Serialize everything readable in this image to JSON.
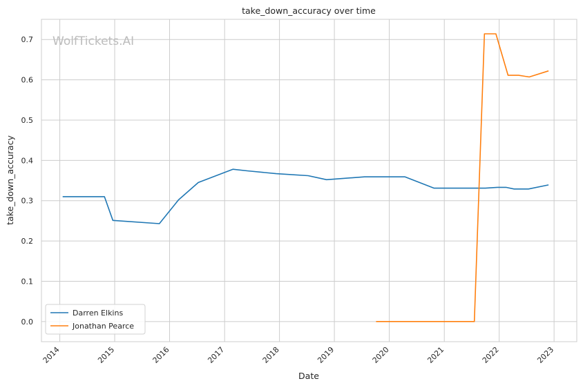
{
  "watermark": "WolfTickets.AI",
  "chart_data": {
    "type": "line",
    "title": "take_down_accuracy over time",
    "xlabel": "Date",
    "ylabel": "take_down_accuracy",
    "xlim": [
      "2013-09-01",
      "2023-06-01"
    ],
    "ylim": [
      -0.05,
      0.75
    ],
    "x_ticks": [
      "2014",
      "2015",
      "2016",
      "2017",
      "2018",
      "2019",
      "2020",
      "2021",
      "2022",
      "2023"
    ],
    "y_ticks": [
      "0.0",
      "0.1",
      "0.2",
      "0.3",
      "0.4",
      "0.5",
      "0.6",
      "0.7"
    ],
    "grid": true,
    "legend_position": "lower-left",
    "series": [
      {
        "name": "Darren Elkins",
        "color": "#1f77b4",
        "points": [
          {
            "x": "2014-01-20",
            "y": 0.31
          },
          {
            "x": "2014-10-25",
            "y": 0.31
          },
          {
            "x": "2014-12-20",
            "y": 0.251
          },
          {
            "x": "2015-10-25",
            "y": 0.243
          },
          {
            "x": "2016-03-01",
            "y": 0.302
          },
          {
            "x": "2016-07-10",
            "y": 0.345
          },
          {
            "x": "2017-02-25",
            "y": 0.378
          },
          {
            "x": "2017-06-01",
            "y": 0.374
          },
          {
            "x": "2017-12-10",
            "y": 0.367
          },
          {
            "x": "2018-07-10",
            "y": 0.362
          },
          {
            "x": "2018-11-10",
            "y": 0.352
          },
          {
            "x": "2019-07-20",
            "y": 0.359
          },
          {
            "x": "2020-04-15",
            "y": 0.359
          },
          {
            "x": "2020-10-25",
            "y": 0.331
          },
          {
            "x": "2021-10-01",
            "y": 0.331
          },
          {
            "x": "2021-12-20",
            "y": 0.333
          },
          {
            "x": "2022-02-15",
            "y": 0.333
          },
          {
            "x": "2022-04-10",
            "y": 0.329
          },
          {
            "x": "2022-07-15",
            "y": 0.329
          },
          {
            "x": "2022-11-25",
            "y": 0.339
          }
        ]
      },
      {
        "name": "Jonathan Pearce",
        "color": "#ff7f0e",
        "points": [
          {
            "x": "2019-10-05",
            "y": 0.0
          },
          {
            "x": "2021-07-20",
            "y": 0.0
          },
          {
            "x": "2021-09-25",
            "y": 0.714
          },
          {
            "x": "2021-12-10",
            "y": 0.714
          },
          {
            "x": "2022-03-01",
            "y": 0.611
          },
          {
            "x": "2022-05-10",
            "y": 0.611
          },
          {
            "x": "2022-07-20",
            "y": 0.607
          },
          {
            "x": "2022-11-25",
            "y": 0.622
          }
        ]
      }
    ]
  }
}
